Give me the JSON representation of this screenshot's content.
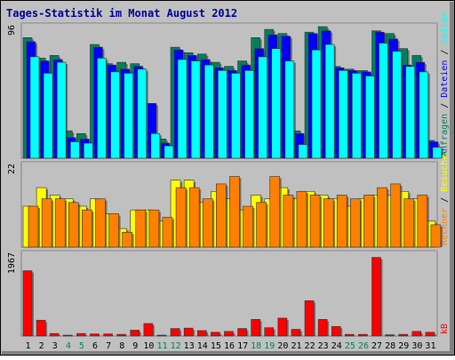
{
  "colors": {
    "frame_bg": "#c0c0c0",
    "panel_bg": "#c0c0c0",
    "title": "#0000a0",
    "hits": "#00805c",
    "files": "#0000ff",
    "pages": "#00ffff",
    "visits": "#ffff00",
    "sites": "#ff8000",
    "kbytes": "#ff0000",
    "weekday_label": "#000000",
    "weekend_label": "#00805c",
    "axis_text": "#000000",
    "grid": "#a8a8a8"
  },
  "chart_data": {
    "type": "bar",
    "title": "Tages-Statistik im Monat August 2012",
    "categories": [
      "1",
      "2",
      "3",
      "4",
      "5",
      "6",
      "7",
      "8",
      "9",
      "10",
      "11",
      "12",
      "13",
      "14",
      "15",
      "16",
      "17",
      "18",
      "19",
      "20",
      "21",
      "22",
      "23",
      "24",
      "25",
      "26",
      "27",
      "28",
      "29",
      "30",
      "31"
    ],
    "weekend_days": [
      "4",
      "5",
      "11",
      "12",
      "18",
      "19",
      "25",
      "26"
    ],
    "panels": [
      {
        "name": "top",
        "ymax": 96,
        "ymax_label": "96",
        "legend": [
          "Anfragen",
          "Dateien",
          "Seiten"
        ],
        "legend_sep": "/",
        "series": [
          {
            "name": "Anfragen",
            "color_key": "hits",
            "values": [
              88,
              73,
              75,
              20,
              18,
              83,
              69,
              70,
              69,
              12,
              14,
              81,
              77,
              76,
              70,
              67,
              71,
              88,
              94,
              91,
              20,
              92,
              96,
              67,
              65,
              64,
              93,
              91,
              80,
              75,
              13
            ]
          },
          {
            "name": "Dateien",
            "color_key": "files",
            "values": [
              85,
              71,
              72,
              15,
              14,
              81,
              68,
              65,
              67,
              40,
              11,
              79,
              75,
              72,
              66,
              64,
              68,
              80,
              90,
              89,
              18,
              91,
              93,
              66,
              64,
              63,
              92,
              87,
              68,
              70,
              12
            ]
          },
          {
            "name": "Seiten",
            "color_key": "pages",
            "values": [
              74,
              62,
              70,
              12,
              11,
              73,
              63,
              62,
              65,
              18,
              9,
              72,
              71,
              68,
              64,
              62,
              64,
              74,
              80,
              71,
              10,
              79,
              83,
              64,
              62,
              60,
              84,
              78,
              67,
              63,
              8
            ]
          }
        ]
      },
      {
        "name": "middle",
        "ymax": 22,
        "ymax_label": "22",
        "legend": [
          "Rechner",
          "Besuche"
        ],
        "legend_sep": "/",
        "series": [
          {
            "name": "Besuche",
            "color_key": "visits",
            "values": [
              11,
              16,
              14,
              13,
              11,
              13,
              9,
              5,
              10,
              10,
              7,
              18,
              18,
              12,
              15,
              13,
              10,
              14,
              13,
              16,
              13,
              15,
              14,
              13,
              11,
              13,
              14,
              14,
              15,
              13,
              7
            ]
          },
          {
            "name": "Rechner",
            "color_key": "sites",
            "values": [
              11,
              13,
              13,
              12,
              10,
              13,
              9,
              4,
              10,
              10,
              8,
              16,
              16,
              13,
              17,
              19,
              11,
              12,
              19,
              14,
              15,
              14,
              13,
              14,
              13,
              14,
              16,
              17,
              13,
              14,
              6
            ]
          }
        ]
      },
      {
        "name": "bottom",
        "ymax": 1967,
        "ymax_label": "1967",
        "legend": [
          "kB"
        ],
        "legend_sep": "",
        "series": [
          {
            "name": "kB",
            "color_key": "kbytes",
            "values": [
              1570,
              380,
              60,
              20,
              60,
              50,
              50,
              40,
              140,
              300,
              20,
              180,
              190,
              130,
              90,
              110,
              180,
              400,
              200,
              430,
              160,
              850,
              400,
              230,
              40,
              40,
              1890,
              30,
              40,
              110,
              90
            ]
          }
        ]
      }
    ]
  }
}
